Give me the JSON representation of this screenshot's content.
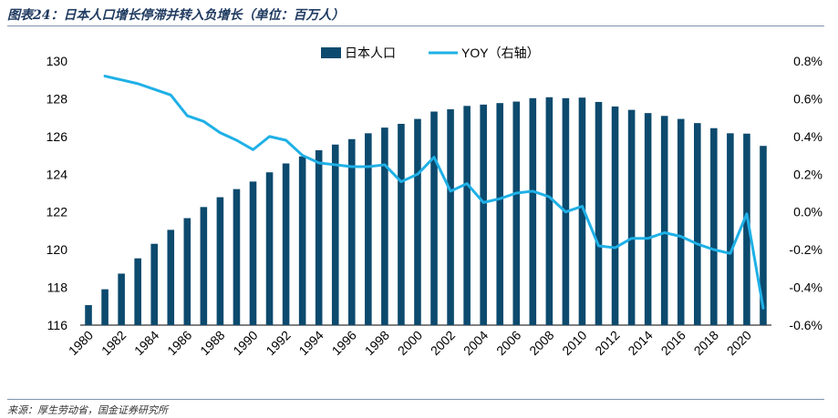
{
  "header": {
    "title": "图表24：日本人口增长停滞并转入负增长（单位：百万人）"
  },
  "footer": {
    "source": "来源：厚生劳动省，国金证券研究所"
  },
  "colors": {
    "bar": "#0c4a6e",
    "line": "#1fb0e6"
  },
  "chart_data": {
    "type": "bar",
    "categories": [
      1980,
      1981,
      1982,
      1983,
      1984,
      1985,
      1986,
      1987,
      1988,
      1989,
      1990,
      1991,
      1992,
      1993,
      1994,
      1995,
      1996,
      1997,
      1998,
      1999,
      2000,
      2001,
      2002,
      2003,
      2004,
      2005,
      2006,
      2007,
      2008,
      2009,
      2010,
      2011,
      2012,
      2013,
      2014,
      2015,
      2016,
      2017,
      2018,
      2019,
      2020,
      2021
    ],
    "x_tick_labels": [
      "1980",
      "1982",
      "1984",
      "1986",
      "1988",
      "1990",
      "1992",
      "1994",
      "1996",
      "1998",
      "2000",
      "2002",
      "2004",
      "2006",
      "2008",
      "2010",
      "2012",
      "2014",
      "2016",
      "2018",
      "2020"
    ],
    "series": [
      {
        "name": "日本人口",
        "type": "bar",
        "axis": "left",
        "values": [
          117.06,
          117.9,
          118.73,
          119.54,
          120.31,
          121.05,
          121.67,
          122.26,
          122.78,
          123.21,
          123.61,
          124.1,
          124.57,
          124.94,
          125.27,
          125.57,
          125.86,
          126.17,
          126.47,
          126.67,
          126.93,
          127.32,
          127.44,
          127.62,
          127.69,
          127.77,
          127.85,
          128.03,
          128.08,
          128.03,
          128.06,
          127.83,
          127.59,
          127.41,
          127.24,
          127.09,
          126.93,
          126.71,
          126.44,
          126.17,
          126.15,
          125.5
        ]
      },
      {
        "name": "YOY（右轴）",
        "type": "line",
        "axis": "right",
        "values": [
          null,
          0.72,
          0.7,
          0.68,
          0.65,
          0.62,
          0.51,
          0.48,
          0.42,
          0.38,
          0.33,
          0.4,
          0.38,
          0.3,
          0.26,
          0.25,
          0.24,
          0.24,
          0.25,
          0.16,
          0.2,
          0.29,
          0.11,
          0.15,
          0.05,
          0.07,
          0.1,
          0.11,
          0.08,
          0.0,
          0.03,
          -0.18,
          -0.19,
          -0.14,
          -0.14,
          -0.11,
          -0.13,
          -0.17,
          -0.2,
          -0.22,
          -0.01,
          -0.51
        ]
      }
    ],
    "y_left": {
      "min": 116,
      "max": 130,
      "ticks": [
        "116",
        "118",
        "120",
        "122",
        "124",
        "126",
        "128",
        "130"
      ]
    },
    "y_right": {
      "min": -0.6,
      "max": 0.8,
      "ticks": [
        "-0.6%",
        "-0.4%",
        "-0.2%",
        "0.0%",
        "0.2%",
        "0.4%",
        "0.6%",
        "0.8%"
      ]
    },
    "legend": {
      "placement": "top-center"
    },
    "grid": false
  }
}
